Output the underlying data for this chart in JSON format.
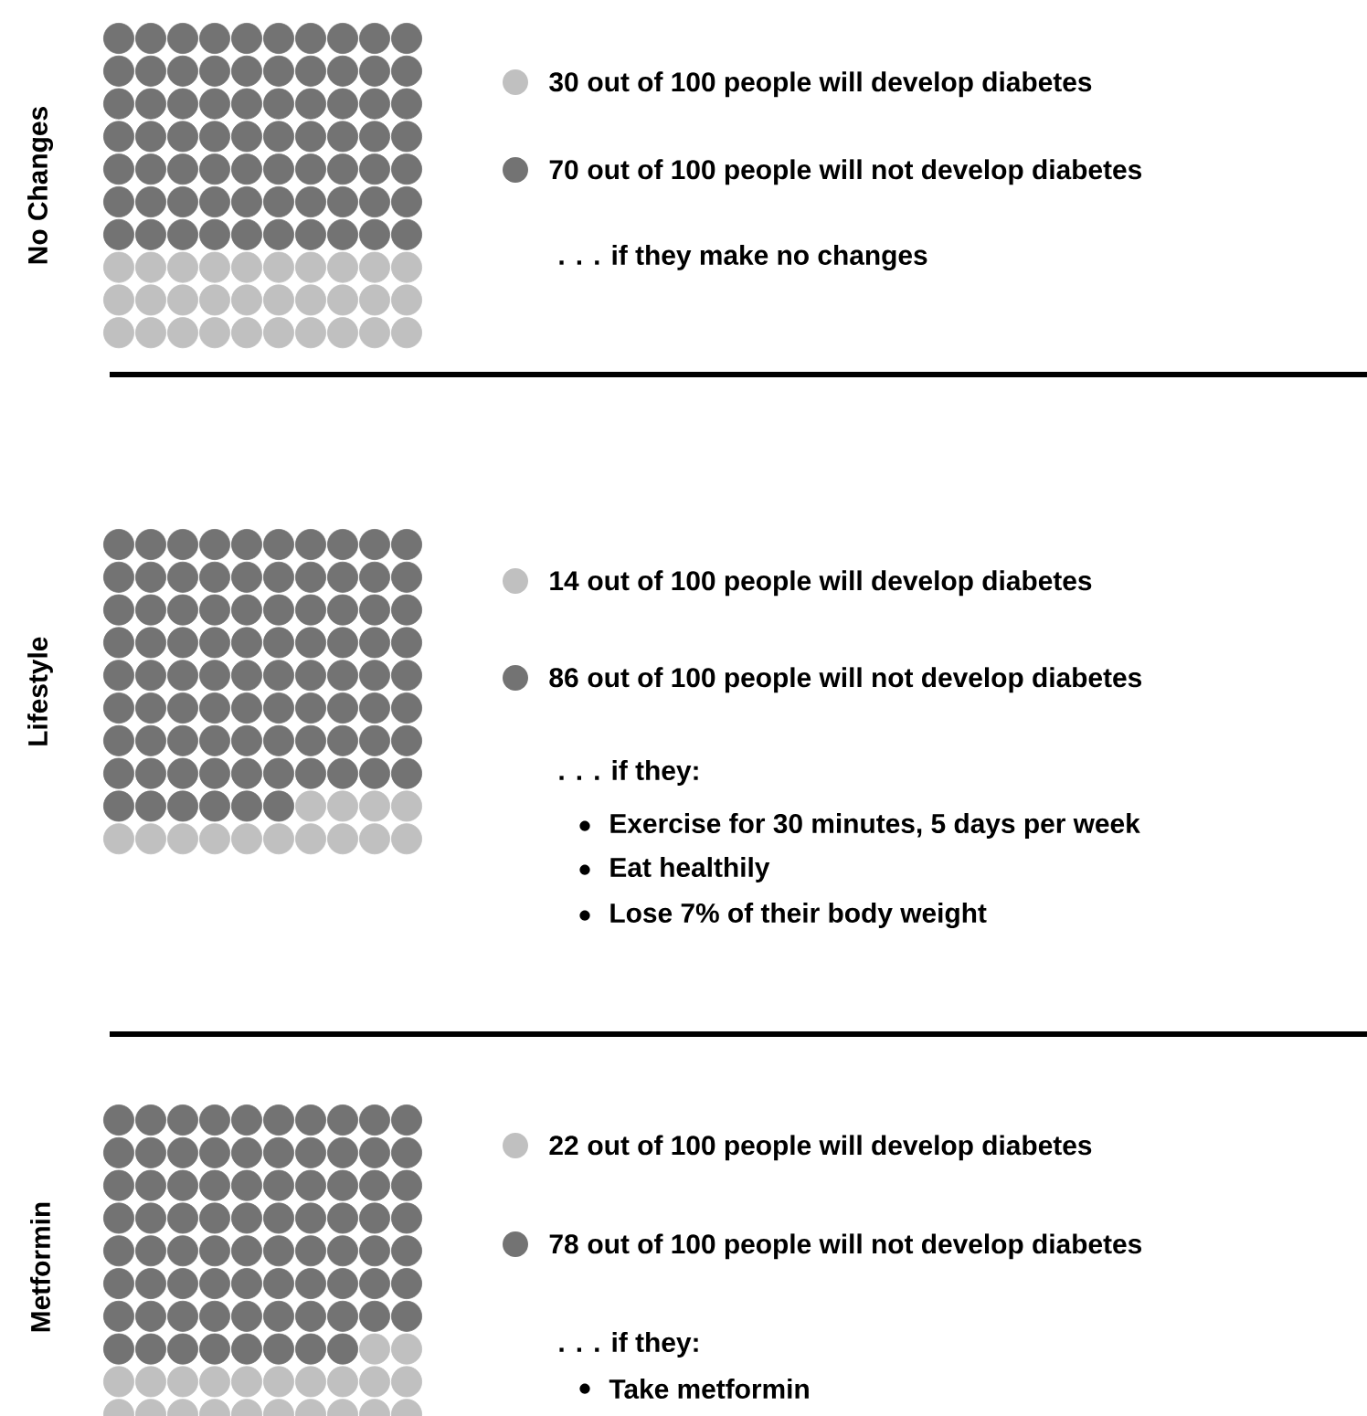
{
  "chart_data": [
    {
      "type": "other",
      "ylabel": "No Changes",
      "categories": [
        "out of 100 people will develop diabetes",
        "out of 100 people will not develop diabetes"
      ],
      "values": [
        30,
        70
      ],
      "value_labels": [
        "30",
        "70"
      ],
      "colors": [
        "#c0c0c0",
        "#737373"
      ],
      "annotations": [
        ". . . if they make no changes"
      ]
    },
    {
      "type": "other",
      "ylabel": "Lifestyle",
      "categories": [
        "out of 100 people will develop diabetes",
        "out of 100 people will not develop diabetes"
      ],
      "values": [
        14,
        86
      ],
      "value_labels": [
        "14",
        "86"
      ],
      "colors": [
        "#c0c0c0",
        "#737373"
      ],
      "annotations": [
        ". . . if they:",
        "Exercise for 30 minutes, 5 days per week",
        "Eat healthily",
        "Lose 7% of their body weight"
      ]
    },
    {
      "type": "other",
      "ylabel": "Metformin",
      "categories": [
        "out of 100 people will develop diabetes",
        "out of 100 people will not develop diabetes"
      ],
      "values": [
        22,
        78
      ],
      "value_labels": [
        "22",
        "78"
      ],
      "colors": [
        "#c0c0c0",
        "#737373"
      ],
      "annotations": [
        ". . . if they:",
        "Take metformin"
      ]
    }
  ]
}
